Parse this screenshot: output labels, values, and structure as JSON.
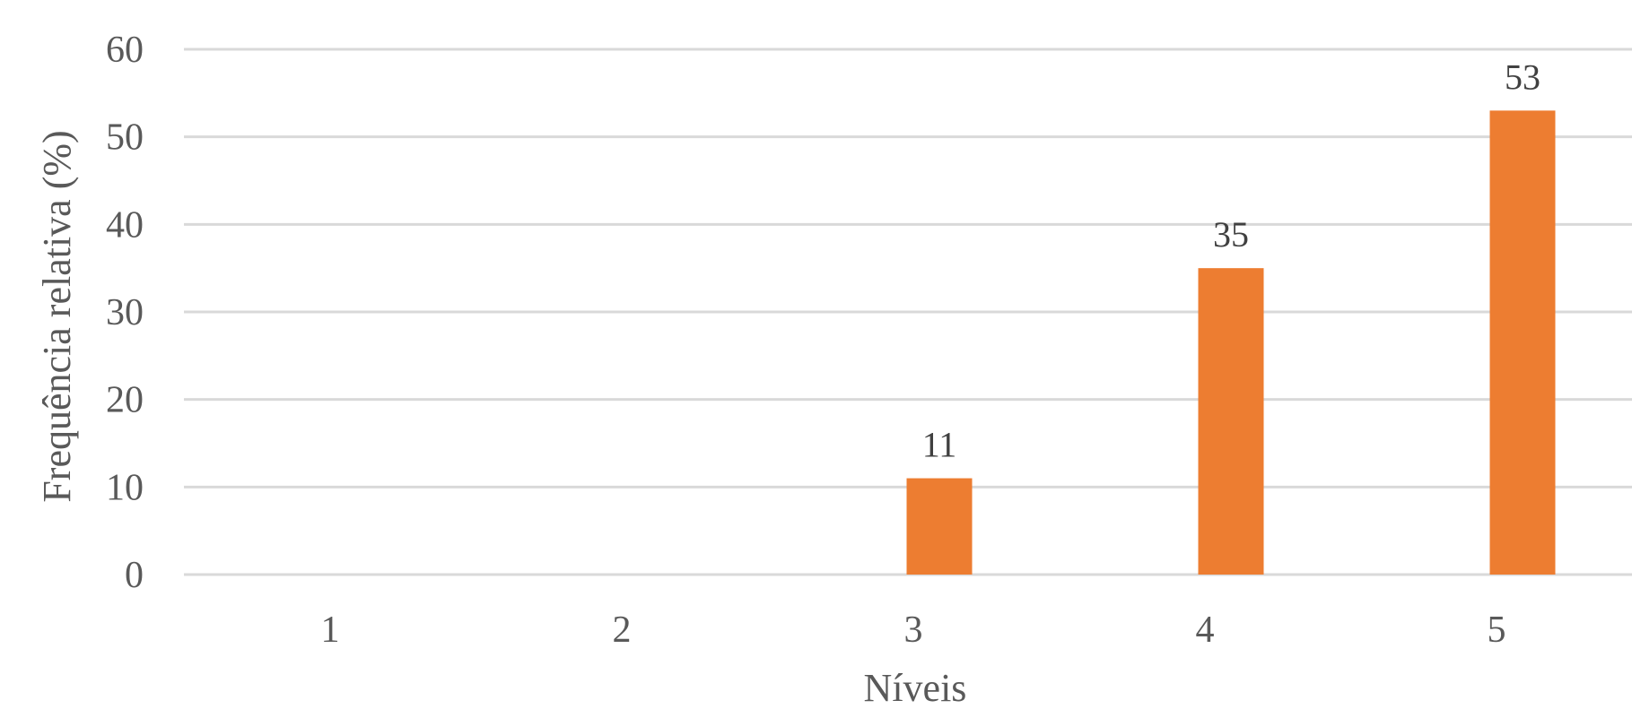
{
  "chart_data": {
    "type": "bar",
    "title": "",
    "xlabel": "Níveis",
    "ylabel": "Frequência relativa (%)",
    "categories": [
      "1",
      "2",
      "3",
      "4",
      "5"
    ],
    "values": [
      0,
      0,
      11,
      35,
      53
    ],
    "data_labels": [
      "",
      "",
      "11",
      "35",
      "53"
    ],
    "yticks": [
      "0",
      "10",
      "20",
      "30",
      "40",
      "50",
      "60"
    ],
    "ylim": [
      0,
      60
    ],
    "grid": true,
    "legend": "none",
    "colors": {
      "bar": "#ED7D31",
      "grid": "#D9D9D9",
      "text": "#595959"
    }
  }
}
